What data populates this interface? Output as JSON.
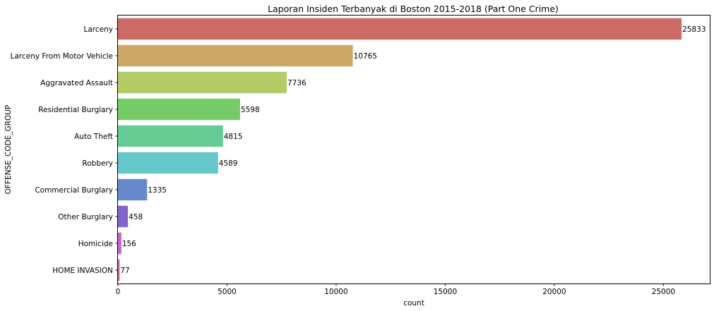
{
  "chart_data": {
    "type": "bar",
    "orientation": "horizontal",
    "title": "Laporan Insiden Terbanyak di Boston 2015-2018 (Part One Crime)",
    "xlabel": "count",
    "ylabel": "OFFENSE_CODE_GROUP",
    "categories": [
      "Larceny",
      "Larceny From Motor Vehicle",
      "Aggravated Assault",
      "Residential Burglary",
      "Auto Theft",
      "Robbery",
      "Commercial Burglary",
      "Other Burglary",
      "Homicide",
      "HOME INVASION"
    ],
    "values": [
      25833,
      10765,
      7736,
      5598,
      4815,
      4589,
      1335,
      458,
      156,
      77
    ],
    "data_labels": [
      "25833",
      "10765",
      "7736",
      "5598",
      "4815",
      "4589",
      "1335",
      "458",
      "156",
      "77"
    ],
    "colors": [
      "#cc6b66",
      "#cca966",
      "#b3cc66",
      "#75cc66",
      "#66cc94",
      "#66c7cc",
      "#6689cc",
      "#8066cc",
      "#be66cc",
      "#cc66a1"
    ],
    "xlim": [
      0,
      27124
    ],
    "xticks": [
      0,
      5000,
      10000,
      15000,
      20000,
      25000
    ],
    "xtick_labels": [
      "0",
      "5000",
      "10000",
      "15000",
      "20000",
      "25000"
    ],
    "grid": false,
    "legend": "none"
  }
}
